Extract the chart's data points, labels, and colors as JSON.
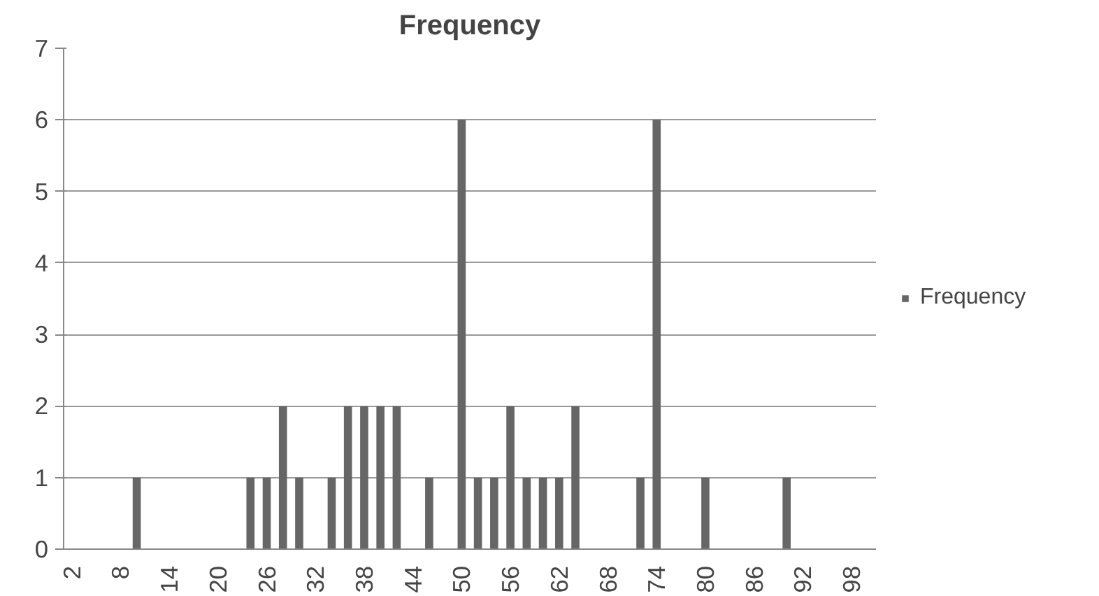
{
  "chart_data": {
    "type": "bar",
    "title": "Frequency",
    "categories": [
      "2",
      null,
      null,
      "8",
      null,
      null,
      "14",
      null,
      null,
      "20",
      null,
      null,
      "26",
      null,
      null,
      "32",
      null,
      null,
      "38",
      null,
      null,
      "44",
      null,
      null,
      "50",
      null,
      null,
      "56",
      null,
      null,
      "62",
      null,
      null,
      "68",
      null,
      null,
      "74",
      null,
      null,
      "80",
      null,
      null,
      "86",
      null,
      null,
      "92",
      null,
      null,
      "98",
      null
    ],
    "series": [
      {
        "name": "Frequency",
        "color": "#666666",
        "values": [
          0,
          0,
          0,
          0,
          1,
          0,
          0,
          0,
          0,
          0,
          0,
          1,
          1,
          2,
          1,
          0,
          1,
          2,
          2,
          2,
          2,
          0,
          1,
          0,
          6,
          1,
          1,
          2,
          1,
          1,
          1,
          2,
          0,
          0,
          0,
          1,
          6,
          0,
          0,
          1,
          0,
          0,
          0,
          0,
          1,
          0,
          0,
          0,
          0,
          0
        ]
      }
    ],
    "ylim": [
      0,
      7
    ],
    "yticks": [
      0,
      1,
      2,
      3,
      4,
      5,
      6,
      7
    ],
    "grid": "y",
    "legend": "right"
  }
}
